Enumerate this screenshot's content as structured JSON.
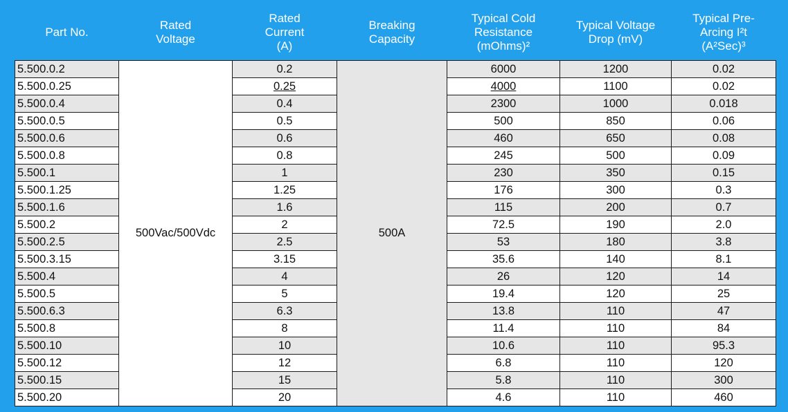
{
  "headers": {
    "part_no": "Part No.",
    "rated_voltage": [
      "Rated",
      "Voltage"
    ],
    "rated_current": [
      "Rated",
      "Current",
      "(A)"
    ],
    "breaking_capacity": [
      "Breaking",
      "Capacity"
    ],
    "cold_resistance": [
      "Typical Cold",
      "Resistance",
      "(mOhms)²"
    ],
    "voltage_drop": [
      "Typical Voltage",
      "Drop (mV)"
    ],
    "pre_arcing": [
      "Typical Pre-",
      "Arcing I²t",
      "(A²Sec)³"
    ]
  },
  "rated_voltage_value": "500Vac/500Vdc",
  "breaking_capacity_value": "500A",
  "rows": [
    {
      "part": "5.500.0.2",
      "current": "0.2",
      "resistance": "6000",
      "drop": "1200",
      "i2t": "0.02"
    },
    {
      "part": "5.500.0.25",
      "current": "0.25",
      "resistance": "4000",
      "drop": "1100",
      "i2t": "0.02"
    },
    {
      "part": "5.500.0.4",
      "current": "0.4",
      "resistance": "2300",
      "drop": "1000",
      "i2t": "0.018"
    },
    {
      "part": "5.500.0.5",
      "current": "0.5",
      "resistance": "500",
      "drop": "850",
      "i2t": "0.06"
    },
    {
      "part": "5.500.0.6",
      "current": "0.6",
      "resistance": "460",
      "drop": "650",
      "i2t": "0.08"
    },
    {
      "part": "5.500.0.8",
      "current": "0.8",
      "resistance": "245",
      "drop": "500",
      "i2t": "0.09"
    },
    {
      "part": "5.500.1",
      "current": "1",
      "resistance": "230",
      "drop": "350",
      "i2t": "0.15"
    },
    {
      "part": "5.500.1.25",
      "current": "1.25",
      "resistance": "176",
      "drop": "300",
      "i2t": "0.3"
    },
    {
      "part": "5.500.1.6",
      "current": "1.6",
      "resistance": "115",
      "drop": "200",
      "i2t": "0.7"
    },
    {
      "part": "5.500.2",
      "current": "2",
      "resistance": "72.5",
      "drop": "190",
      "i2t": "2.0"
    },
    {
      "part": "5.500.2.5",
      "current": "2.5",
      "resistance": "53",
      "drop": "180",
      "i2t": "3.8"
    },
    {
      "part": "5.500.3.15",
      "current": "3.15",
      "resistance": "35.6",
      "drop": "140",
      "i2t": "8.1"
    },
    {
      "part": "5.500.4",
      "current": "4",
      "resistance": "26",
      "drop": "120",
      "i2t": "14"
    },
    {
      "part": "5.500.5",
      "current": "5",
      "resistance": "19.4",
      "drop": "120",
      "i2t": "25"
    },
    {
      "part": "5.500.6.3",
      "current": "6.3",
      "resistance": "13.8",
      "drop": "110",
      "i2t": "47"
    },
    {
      "part": "5.500.8",
      "current": "8",
      "resistance": "11.4",
      "drop": "110",
      "i2t": "84"
    },
    {
      "part": "5.500.10",
      "current": "10",
      "resistance": "10.6",
      "drop": "110",
      "i2t": "95.3"
    },
    {
      "part": "5.500.12",
      "current": "12",
      "resistance": "6.8",
      "drop": "110",
      "i2t": "120"
    },
    {
      "part": "5.500.15",
      "current": "15",
      "resistance": "5.8",
      "drop": "110",
      "i2t": "300"
    },
    {
      "part": "5.500.20",
      "current": "20",
      "resistance": "4.6",
      "drop": "110",
      "i2t": "460"
    }
  ]
}
